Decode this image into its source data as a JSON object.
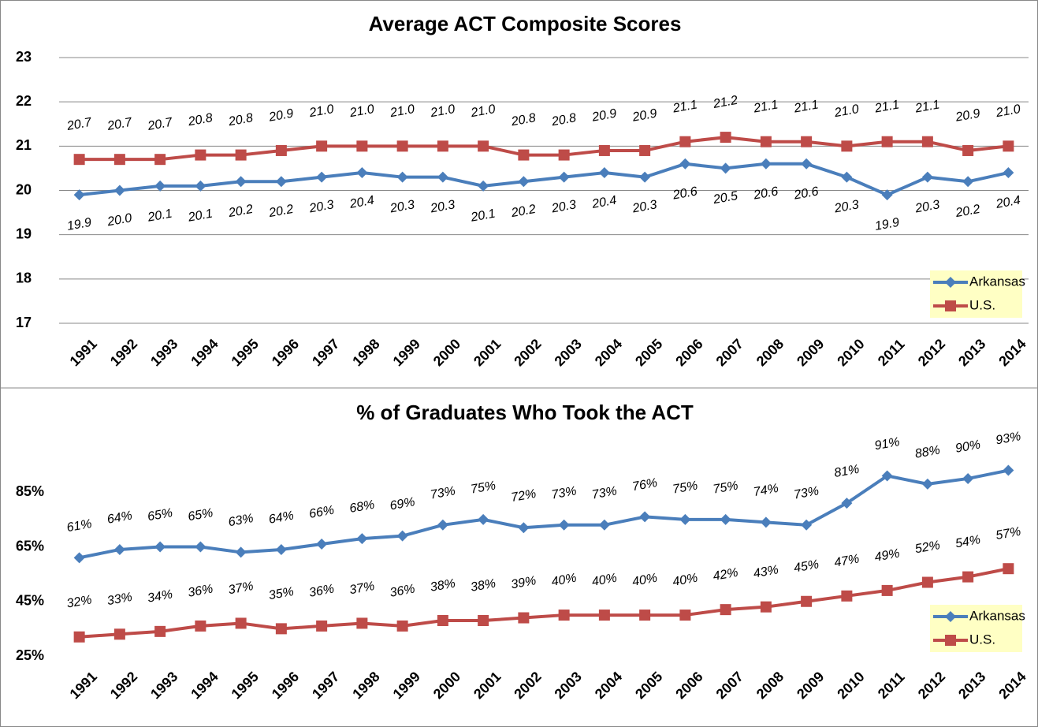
{
  "chart_data": [
    {
      "type": "line",
      "title": "Average ACT Composite Scores",
      "categories": [
        "1991",
        "1992",
        "1993",
        "1994",
        "1995",
        "1996",
        "1997",
        "1998",
        "1999",
        "2000",
        "2001",
        "2002",
        "2003",
        "2004",
        "2005",
        "2006",
        "2007",
        "2008",
        "2009",
        "2010",
        "2011",
        "2012",
        "2013",
        "2014"
      ],
      "series": [
        {
          "name": "Arkansas",
          "color": "#4a7ebb",
          "marker": "diamond",
          "values": [
            19.9,
            20.0,
            20.1,
            20.1,
            20.2,
            20.2,
            20.3,
            20.4,
            20.3,
            20.3,
            20.1,
            20.2,
            20.3,
            20.4,
            20.3,
            20.6,
            20.5,
            20.6,
            20.6,
            20.3,
            19.9,
            20.3,
            20.2,
            20.4
          ],
          "value_labels": [
            "19.9",
            "20.0",
            "20.1",
            "20.1",
            "20.2",
            "20.2",
            "20.3",
            "20.4",
            "20.3",
            "20.3",
            "20.1",
            "20.2",
            "20.3",
            "20.4",
            "20.3",
            "20.6",
            "20.5",
            "20.6",
            "20.6",
            "20.3",
            "19.9",
            "20.3",
            "20.2",
            "20.4"
          ]
        },
        {
          "name": "U.S.",
          "color": "#be4b48",
          "marker": "square",
          "values": [
            20.7,
            20.7,
            20.7,
            20.8,
            20.8,
            20.9,
            21.0,
            21.0,
            21.0,
            21.0,
            21.0,
            20.8,
            20.8,
            20.9,
            20.9,
            21.1,
            21.2,
            21.1,
            21.1,
            21.0,
            21.1,
            21.1,
            20.9,
            21.0
          ],
          "value_labels": [
            "20.7",
            "20.7",
            "20.7",
            "20.8",
            "20.8",
            "20.9",
            "21.0",
            "21.0",
            "21.0",
            "21.0",
            "21.0",
            "20.8",
            "20.8",
            "20.9",
            "20.9",
            "21.1",
            "21.2",
            "21.1",
            "21.1",
            "21.0",
            "21.1",
            "21.1",
            "20.9",
            "21.0"
          ]
        }
      ],
      "ylim": [
        17,
        23
      ],
      "yticks": [
        17,
        18,
        19,
        20,
        21,
        22,
        23
      ],
      "grid": true,
      "legend": "lower right"
    },
    {
      "type": "line",
      "title": "% of Graduates Who Took the ACT",
      "categories": [
        "1991",
        "1992",
        "1993",
        "1994",
        "1995",
        "1996",
        "1997",
        "1998",
        "1999",
        "2000",
        "2001",
        "2002",
        "2003",
        "2004",
        "2005",
        "2006",
        "2007",
        "2008",
        "2009",
        "2010",
        "2011",
        "2012",
        "2013",
        "2014"
      ],
      "series": [
        {
          "name": "Arkansas",
          "color": "#4a7ebb",
          "marker": "diamond",
          "values": [
            61,
            64,
            65,
            65,
            63,
            64,
            66,
            68,
            69,
            73,
            75,
            72,
            73,
            73,
            76,
            75,
            75,
            74,
            73,
            81,
            91,
            88,
            90,
            93
          ],
          "value_labels": [
            "61%",
            "64%",
            "65%",
            "65%",
            "63%",
            "64%",
            "66%",
            "68%",
            "69%",
            "73%",
            "75%",
            "72%",
            "73%",
            "73%",
            "76%",
            "75%",
            "75%",
            "74%",
            "73%",
            "81%",
            "91%",
            "88%",
            "90%",
            "93%"
          ]
        },
        {
          "name": "U.S.",
          "color": "#be4b48",
          "marker": "square",
          "values": [
            32,
            33,
            34,
            36,
            37,
            35,
            36,
            37,
            36,
            38,
            38,
            39,
            40,
            40,
            40,
            40,
            42,
            43,
            45,
            47,
            49,
            52,
            54,
            57
          ],
          "value_labels": [
            "32%",
            "33%",
            "34%",
            "36%",
            "37%",
            "35%",
            "36%",
            "37%",
            "36%",
            "38%",
            "38%",
            "39%",
            "40%",
            "40%",
            "40%",
            "40%",
            "42%",
            "43%",
            "45%",
            "47%",
            "49%",
            "52%",
            "54%",
            "57%"
          ]
        }
      ],
      "ylim": [
        25,
        105
      ],
      "yticks": [
        {
          "value": 25,
          "label": "25%"
        },
        {
          "value": 45,
          "label": "45%"
        },
        {
          "value": 65,
          "label": "65%"
        },
        {
          "value": 85,
          "label": "85%"
        }
      ],
      "grid": false,
      "legend": "lower right"
    }
  ]
}
